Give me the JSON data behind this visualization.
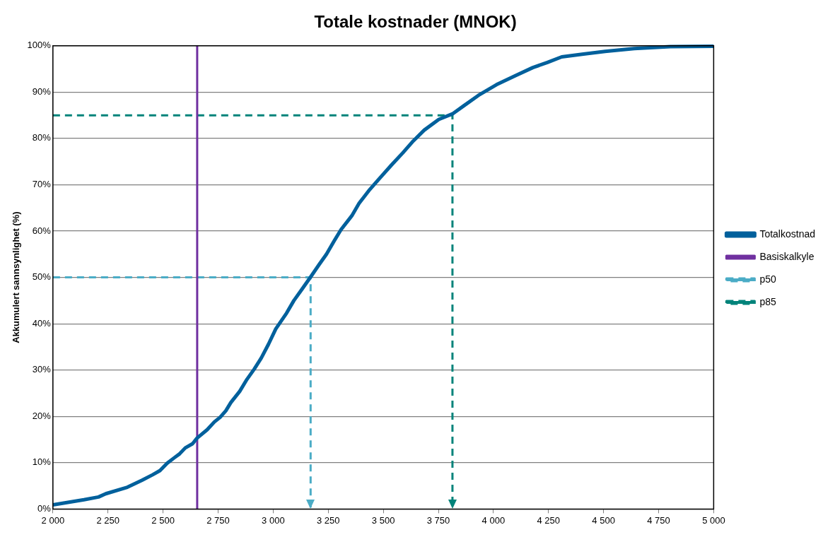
{
  "chart_data": {
    "type": "line",
    "title": "Totale kostnader (MNOK)",
    "ylabel": "Akkumulert sannsynlighet (%)",
    "xlim": [
      2000,
      5000
    ],
    "xticks": [
      {
        "value": 2000,
        "label": "2 000"
      },
      {
        "value": 2250,
        "label": "2 250"
      },
      {
        "value": 2500,
        "label": "2 500"
      },
      {
        "value": 2750,
        "label": "2 750"
      },
      {
        "value": 3000,
        "label": "3 000"
      },
      {
        "value": 3250,
        "label": "3 250"
      },
      {
        "value": 3500,
        "label": "3 500"
      },
      {
        "value": 3750,
        "label": "3 750"
      },
      {
        "value": 4000,
        "label": "4 000"
      },
      {
        "value": 4250,
        "label": "4 250"
      },
      {
        "value": 4500,
        "label": "4 500"
      },
      {
        "value": 4750,
        "label": "4 750"
      },
      {
        "value": 5000,
        "label": "5 000"
      }
    ],
    "ylim": [
      0,
      100
    ],
    "yticks": [
      {
        "value": 0,
        "label": "0%"
      },
      {
        "value": 10,
        "label": "10%"
      },
      {
        "value": 20,
        "label": "20%"
      },
      {
        "value": 30,
        "label": "30%"
      },
      {
        "value": 40,
        "label": "40%"
      },
      {
        "value": 50,
        "label": "50%"
      },
      {
        "value": 60,
        "label": "60%"
      },
      {
        "value": 70,
        "label": "70%"
      },
      {
        "value": 80,
        "label": "80%"
      },
      {
        "value": 90,
        "label": "90%"
      },
      {
        "value": 100,
        "label": "100%"
      }
    ],
    "grid": "y",
    "legend": "right",
    "marker": "none",
    "line_style": "solid",
    "series": [
      {
        "name": "Totalkostnad",
        "color": "#00609c",
        "x": [
          2000,
          2141,
          2207,
          2240,
          2338,
          2404,
          2453,
          2486,
          2519,
          2552,
          2575,
          2601,
          2634,
          2654,
          2700,
          2733,
          2759,
          2785,
          2808,
          2848,
          2881,
          2914,
          2946,
          2979,
          3012,
          3061,
          3094,
          3127,
          3170,
          3209,
          3242,
          3275,
          3308,
          3357,
          3390,
          3439,
          3489,
          3538,
          3587,
          3637,
          3686,
          3752,
          3814,
          3867,
          3932,
          4014,
          4097,
          4179,
          4245,
          4310,
          4409,
          4507,
          4639,
          4803,
          5000
        ],
        "values": [
          0.9,
          2,
          2.6,
          3.3,
          4.7,
          6.2,
          7.4,
          8.3,
          9.9,
          11.1,
          11.9,
          13.2,
          14.1,
          15.3,
          17.1,
          18.8,
          19.8,
          21.2,
          23,
          25.4,
          28,
          30.2,
          32.6,
          35.6,
          38.9,
          42.3,
          45,
          47.2,
          50.1,
          52.8,
          55,
          57.7,
          60.3,
          63.3,
          66,
          69,
          71.7,
          74.3,
          76.8,
          79.5,
          81.8,
          84.1,
          85.3,
          87.1,
          89.3,
          91.6,
          93.5,
          95.3,
          96.4,
          97.6,
          98.2,
          98.8,
          99.4,
          99.8,
          99.9
        ]
      },
      {
        "name": "Basiskalkyle",
        "color": "#7030a0",
        "x": [
          2655,
          2655
        ],
        "values": [
          0,
          100
        ]
      },
      {
        "name": "p50",
        "color": "#4bacc6",
        "x": [
          2000,
          3170,
          3170
        ],
        "values": [
          50,
          50,
          0
        ],
        "line_style": "dashed"
      },
      {
        "name": "p85",
        "color": "#00837a",
        "x": [
          2000,
          3814,
          3814
        ],
        "values": [
          85,
          85,
          0
        ],
        "line_style": "dashed"
      }
    ]
  }
}
